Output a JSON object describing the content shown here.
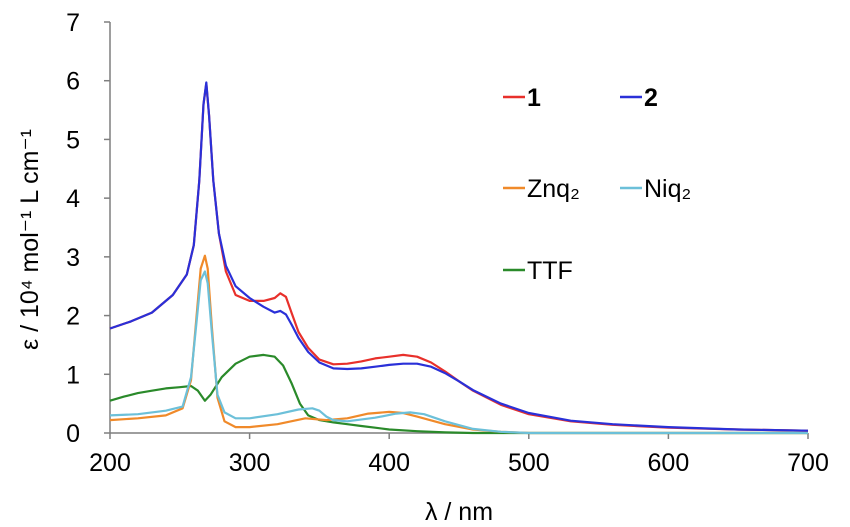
{
  "chart_data": {
    "type": "line",
    "xlabel": "λ / nm",
    "ylabel": "ε / 10⁴ mol⁻¹ L cm⁻¹",
    "xlim": [
      200,
      700
    ],
    "ylim": [
      0,
      7
    ],
    "xticks": [
      "200",
      "300",
      "400",
      "500",
      "600",
      "700"
    ],
    "yticks": [
      "0",
      "1",
      "2",
      "3",
      "4",
      "5",
      "6",
      "7"
    ],
    "grid": false,
    "legend": "right",
    "series": [
      {
        "name": "1",
        "color": "#e8302b",
        "x": [
          200,
          215,
          230,
          245,
          255,
          260,
          264,
          267,
          269,
          271,
          274,
          278,
          283,
          290,
          300,
          310,
          318,
          322,
          326,
          330,
          335,
          342,
          350,
          360,
          370,
          380,
          390,
          400,
          410,
          420,
          430,
          440,
          450,
          460,
          480,
          500,
          530,
          560,
          600,
          650,
          700
        ],
        "y": [
          1.78,
          1.9,
          2.05,
          2.35,
          2.7,
          3.2,
          4.3,
          5.6,
          5.95,
          5.4,
          4.3,
          3.4,
          2.75,
          2.35,
          2.25,
          2.25,
          2.3,
          2.38,
          2.32,
          2.05,
          1.72,
          1.45,
          1.25,
          1.17,
          1.18,
          1.22,
          1.27,
          1.3,
          1.33,
          1.3,
          1.2,
          1.05,
          0.88,
          0.72,
          0.48,
          0.32,
          0.2,
          0.14,
          0.09,
          0.06,
          0.04
        ]
      },
      {
        "name": "2",
        "color": "#2a30d8",
        "x": [
          200,
          215,
          230,
          245,
          255,
          260,
          264,
          267,
          269,
          271,
          274,
          278,
          283,
          290,
          300,
          310,
          318,
          322,
          326,
          330,
          335,
          342,
          350,
          360,
          370,
          380,
          390,
          400,
          410,
          420,
          430,
          440,
          450,
          460,
          480,
          500,
          530,
          560,
          600,
          650,
          700
        ],
        "y": [
          1.78,
          1.9,
          2.05,
          2.35,
          2.7,
          3.2,
          4.3,
          5.6,
          5.97,
          5.4,
          4.3,
          3.4,
          2.85,
          2.5,
          2.3,
          2.15,
          2.05,
          2.08,
          2.02,
          1.85,
          1.62,
          1.38,
          1.2,
          1.1,
          1.09,
          1.1,
          1.13,
          1.16,
          1.18,
          1.18,
          1.13,
          1.02,
          0.88,
          0.73,
          0.5,
          0.34,
          0.21,
          0.15,
          0.1,
          0.06,
          0.04
        ]
      },
      {
        "name": "Znq₂",
        "color": "#f08a2a",
        "x": [
          200,
          220,
          240,
          252,
          258,
          262,
          265,
          268,
          270,
          273,
          277,
          282,
          290,
          300,
          320,
          340,
          355,
          370,
          385,
          400,
          410,
          420,
          440,
          460,
          480,
          500,
          700
        ],
        "y": [
          0.22,
          0.25,
          0.3,
          0.42,
          0.9,
          2.0,
          2.8,
          3.02,
          2.8,
          1.8,
          0.6,
          0.2,
          0.1,
          0.1,
          0.15,
          0.25,
          0.22,
          0.25,
          0.33,
          0.36,
          0.34,
          0.28,
          0.15,
          0.06,
          0.02,
          0.0,
          0.0
        ]
      },
      {
        "name": "Niq₂",
        "color": "#6cc0d9",
        "x": [
          200,
          220,
          240,
          252,
          258,
          262,
          265,
          268,
          270,
          273,
          277,
          282,
          290,
          300,
          320,
          335,
          345,
          350,
          355,
          360,
          370,
          390,
          405,
          415,
          425,
          440,
          460,
          480,
          500,
          700
        ],
        "y": [
          0.3,
          0.32,
          0.38,
          0.45,
          0.95,
          1.9,
          2.6,
          2.75,
          2.55,
          1.7,
          0.65,
          0.35,
          0.25,
          0.25,
          0.32,
          0.4,
          0.42,
          0.38,
          0.28,
          0.22,
          0.2,
          0.26,
          0.33,
          0.35,
          0.32,
          0.2,
          0.07,
          0.02,
          0.0,
          0.0
        ]
      },
      {
        "name": "TTF",
        "color": "#2a8a2a",
        "x": [
          200,
          210,
          220,
          230,
          240,
          250,
          258,
          263,
          268,
          272,
          280,
          290,
          300,
          310,
          318,
          324,
          330,
          336,
          342,
          350,
          360,
          370,
          380,
          390,
          400,
          420,
          440,
          460,
          500,
          700
        ],
        "y": [
          0.55,
          0.62,
          0.68,
          0.72,
          0.76,
          0.78,
          0.8,
          0.72,
          0.55,
          0.65,
          0.95,
          1.18,
          1.3,
          1.33,
          1.3,
          1.15,
          0.85,
          0.5,
          0.3,
          0.22,
          0.18,
          0.15,
          0.12,
          0.09,
          0.06,
          0.03,
          0.01,
          0.0,
          0.0,
          0.0
        ]
      }
    ]
  }
}
